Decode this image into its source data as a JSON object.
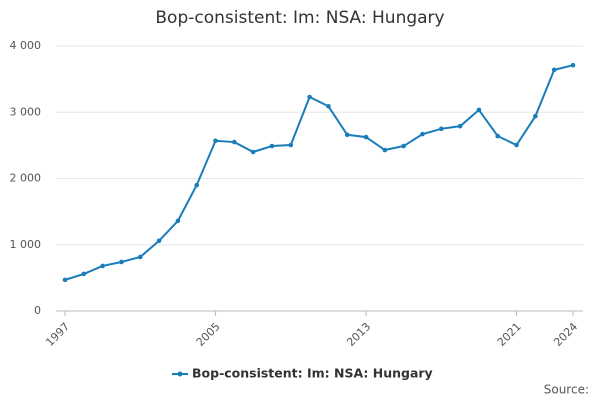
{
  "chart_data": {
    "type": "line",
    "title": "Bop-consistent: Im: NSA: Hungary",
    "x": [
      1997,
      1998,
      1999,
      2000,
      2001,
      2002,
      2003,
      2004,
      2005,
      2006,
      2007,
      2008,
      2009,
      2010,
      2011,
      2012,
      2013,
      2014,
      2015,
      2016,
      2017,
      2018,
      2019,
      2020,
      2021,
      2022,
      2023,
      2024
    ],
    "series": [
      {
        "name": "Bop-consistent: Im: NSA: Hungary",
        "color": "#1a7dba",
        "values": [
          470,
          560,
          680,
          740,
          815,
          1060,
          1360,
          1900,
          2570,
          2550,
          2400,
          2490,
          2505,
          3230,
          3090,
          2660,
          2625,
          2430,
          2490,
          2670,
          2750,
          2790,
          3035,
          2640,
          2505,
          2940,
          3640,
          3710
        ]
      }
    ],
    "xlim": [
      1997,
      2024
    ],
    "xticks": [
      1997,
      2005,
      2013,
      2021,
      2024
    ],
    "ylim": [
      0,
      4000
    ],
    "yticks": [
      0,
      {
        "value": 1000,
        "label": "1 000"
      },
      {
        "value": 2000,
        "label": "2 000"
      },
      {
        "value": 3000,
        "label": "3 000"
      },
      {
        "value": 4000,
        "label": "4 000"
      }
    ],
    "grid": true,
    "legend": "bottom",
    "source": "Source:"
  }
}
